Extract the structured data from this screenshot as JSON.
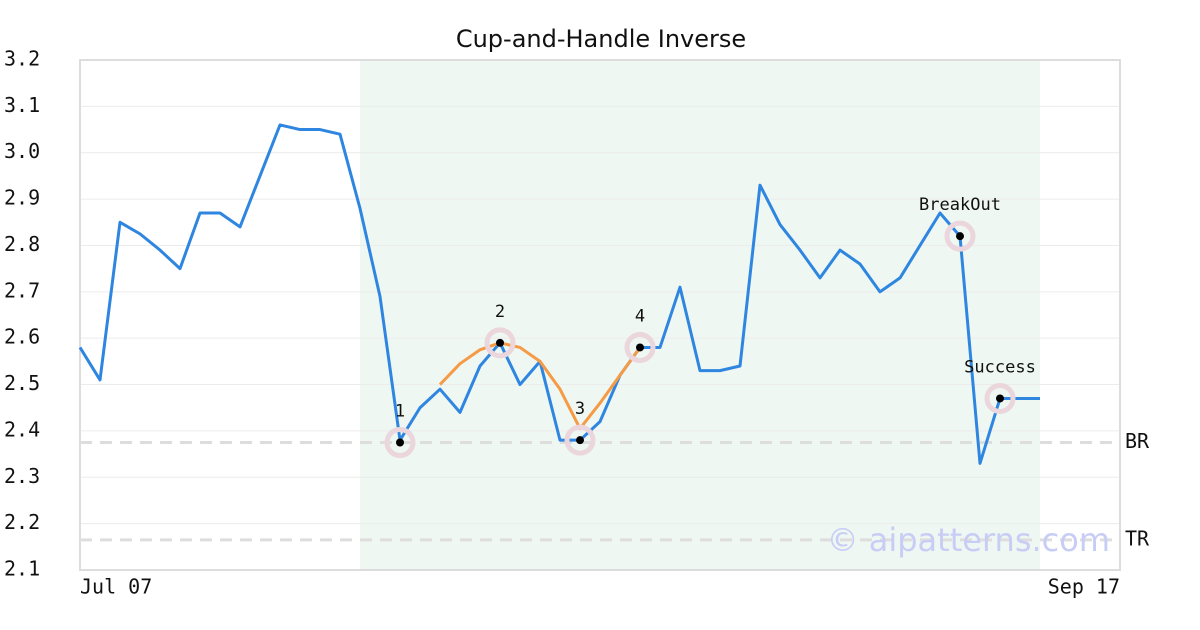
{
  "chart_data": {
    "type": "line",
    "title": "Cup-and-Handle Inverse",
    "categories": [
      "Jul 07",
      null,
      null,
      null,
      null,
      null,
      null,
      null,
      null,
      null,
      null,
      null,
      null,
      null,
      null,
      null,
      null,
      null,
      null,
      null,
      null,
      null,
      null,
      null,
      null,
      null,
      null,
      null,
      null,
      null,
      null,
      null,
      null,
      null,
      null,
      null,
      null,
      null,
      null,
      null,
      null,
      null,
      null,
      null,
      null,
      null,
      null,
      null,
      null,
      null,
      null,
      null,
      "Sep 17"
    ],
    "series": [
      {
        "color": "#2f86e0",
        "values": [
          2.58,
          2.51,
          2.85,
          2.825,
          2.79,
          2.75,
          2.87,
          2.87,
          2.84,
          2.95,
          3.06,
          3.05,
          3.05,
          3.04,
          2.88,
          2.69,
          2.38,
          2.45,
          2.49,
          2.44,
          2.54,
          2.59,
          2.5,
          2.55,
          2.38,
          2.38,
          2.42,
          2.52,
          2.58,
          2.58,
          2.71,
          2.53,
          2.53,
          2.54,
          2.93,
          2.845,
          2.79,
          2.73,
          2.79,
          2.76,
          2.7,
          2.73,
          2.8,
          2.87,
          2.82,
          2.33,
          2.47,
          2.47,
          2.47,
          null,
          null,
          null,
          null
        ]
      },
      {
        "color": "#f59a45",
        "values": [
          null,
          null,
          null,
          null,
          null,
          null,
          null,
          null,
          null,
          null,
          null,
          null,
          null,
          null,
          null,
          null,
          2.38,
          null,
          2.5,
          2.545,
          2.575,
          2.59,
          2.58,
          2.55,
          2.49,
          2.405,
          2.46,
          2.52,
          2.58,
          null,
          null,
          null,
          null,
          null,
          null,
          null,
          null,
          null,
          null,
          null,
          null,
          null,
          null,
          null,
          null,
          null,
          null,
          null,
          null,
          null,
          null,
          null,
          null
        ]
      }
    ],
    "points": [
      {
        "index": 16,
        "value": 2.375,
        "label": "1"
      },
      {
        "index": 21,
        "value": 2.59,
        "label": "2"
      },
      {
        "index": 25,
        "value": 2.38,
        "label": "3"
      },
      {
        "index": 28,
        "value": 2.58,
        "label": "4"
      },
      {
        "index": 44,
        "value": 2.82,
        "label": "BreakOut"
      },
      {
        "index": 46,
        "value": 2.47,
        "label": "Success"
      }
    ],
    "hlines": [
      {
        "value": 2.375,
        "label": "BR"
      },
      {
        "value": 2.165,
        "label": "TR"
      }
    ],
    "shade": [
      14,
      48
    ],
    "watermark": "© aipatterns.com",
    "ylim": [
      2.1,
      3.2
    ],
    "yticks": [
      2.1,
      2.2,
      2.3,
      2.4,
      2.5,
      2.6,
      2.7,
      2.8,
      2.9,
      {
        "value": 3,
        "label": "3.0"
      },
      3.1,
      3.2
    ],
    "grid": true
  }
}
